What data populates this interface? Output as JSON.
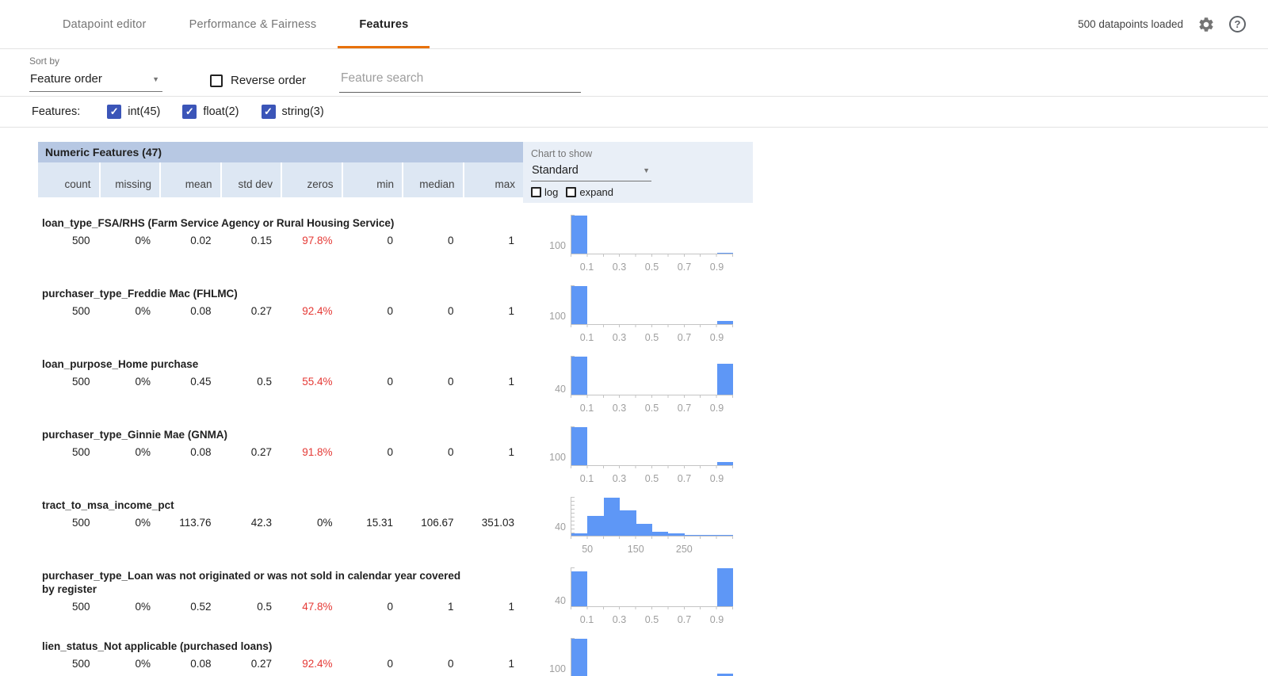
{
  "header": {
    "tabs": [
      {
        "label": "Datapoint editor",
        "active": false
      },
      {
        "label": "Performance & Fairness",
        "active": false
      },
      {
        "label": "Features",
        "active": true
      }
    ],
    "status": "500 datapoints loaded",
    "icons": {
      "settings": "gear-icon",
      "help": "help-icon"
    }
  },
  "toolbar": {
    "sort_by_label": "Sort by",
    "sort_by_value": "Feature order",
    "reverse_order_label": "Reverse order",
    "search_placeholder": "Feature search"
  },
  "filters": {
    "label": "Features:",
    "items": [
      {
        "label": "int(45)",
        "checked": true
      },
      {
        "label": "float(2)",
        "checked": true
      },
      {
        "label": "string(3)",
        "checked": true
      }
    ]
  },
  "table": {
    "title": "Numeric Features (47)",
    "columns": [
      "count",
      "missing",
      "mean",
      "std dev",
      "zeros",
      "min",
      "median",
      "max"
    ],
    "chart_controls": {
      "label": "Chart to show",
      "selected": "Standard",
      "checkboxes": [
        {
          "label": "log",
          "checked": false
        },
        {
          "label": "expand",
          "checked": false
        }
      ]
    }
  },
  "colors": {
    "accent_orange": "#e8710a",
    "bar_blue": "#5e97f6",
    "checkbox_blue": "#3b55b8",
    "alert_red": "#e53935",
    "header_blue": "#b7c8e3",
    "subheader_blue": "#dde7f3",
    "panel_blue": "#e9eff7"
  },
  "features": [
    {
      "name": "loan_type_FSA/RHS (Farm Service Agency or Rural Housing Service)",
      "stats": {
        "count": "500",
        "missing": "0%",
        "mean": "0.02",
        "std dev": "0.15",
        "zeros": "97.8%",
        "min": "0",
        "median": "0",
        "max": "1"
      },
      "zeros_red": true,
      "histogram": {
        "type": "bar",
        "y_label": "100",
        "axis_min": 0,
        "axis_max": 1,
        "ticks": [
          0.1,
          0.3,
          0.5,
          0.7,
          0.9
        ],
        "bins": [
          489,
          0,
          0,
          0,
          0,
          0,
          0,
          0,
          0,
          11
        ]
      }
    },
    {
      "name": "purchaser_type_Freddie Mac (FHLMC)",
      "stats": {
        "count": "500",
        "missing": "0%",
        "mean": "0.08",
        "std dev": "0.27",
        "zeros": "92.4%",
        "min": "0",
        "median": "0",
        "max": "1"
      },
      "zeros_red": true,
      "histogram": {
        "type": "bar",
        "y_label": "100",
        "axis_min": 0,
        "axis_max": 1,
        "ticks": [
          0.1,
          0.3,
          0.5,
          0.7,
          0.9
        ],
        "bins": [
          462,
          0,
          0,
          0,
          0,
          0,
          0,
          0,
          0,
          38
        ]
      }
    },
    {
      "name": "loan_purpose_Home purchase",
      "stats": {
        "count": "500",
        "missing": "0%",
        "mean": "0.45",
        "std dev": "0.5",
        "zeros": "55.4%",
        "min": "0",
        "median": "0",
        "max": "1"
      },
      "zeros_red": true,
      "histogram": {
        "type": "bar",
        "y_label": "40",
        "axis_min": 0,
        "axis_max": 1,
        "ticks": [
          0.1,
          0.3,
          0.5,
          0.7,
          0.9
        ],
        "bins": [
          277,
          0,
          0,
          0,
          0,
          0,
          0,
          0,
          0,
          223
        ]
      }
    },
    {
      "name": "purchaser_type_Ginnie Mae (GNMA)",
      "stats": {
        "count": "500",
        "missing": "0%",
        "mean": "0.08",
        "std dev": "0.27",
        "zeros": "91.8%",
        "min": "0",
        "median": "0",
        "max": "1"
      },
      "zeros_red": true,
      "histogram": {
        "type": "bar",
        "y_label": "100",
        "axis_min": 0,
        "axis_max": 1,
        "ticks": [
          0.1,
          0.3,
          0.5,
          0.7,
          0.9
        ],
        "bins": [
          459,
          0,
          0,
          0,
          0,
          0,
          0,
          0,
          0,
          41
        ]
      }
    },
    {
      "name": "tract_to_msa_income_pct",
      "stats": {
        "count": "500",
        "missing": "0%",
        "mean": "113.76",
        "std dev": "42.3",
        "zeros": "0%",
        "min": "15.31",
        "median": "106.67",
        "max": "351.03"
      },
      "zeros_red": false,
      "histogram": {
        "type": "bar",
        "y_label": "40",
        "axis_min": 15.31,
        "axis_max": 351.03,
        "ticks": [
          50,
          150,
          250
        ],
        "bins": [
          10,
          95,
          180,
          120,
          55,
          20,
          10,
          5,
          3,
          2
        ]
      }
    },
    {
      "name": "purchaser_type_Loan was not originated or was not sold in calendar year covered by register",
      "stats": {
        "count": "500",
        "missing": "0%",
        "mean": "0.52",
        "std dev": "0.5",
        "zeros": "47.8%",
        "min": "0",
        "median": "1",
        "max": "1"
      },
      "zeros_red": true,
      "histogram": {
        "type": "bar",
        "y_label": "40",
        "axis_min": 0,
        "axis_max": 1,
        "ticks": [
          0.1,
          0.3,
          0.5,
          0.7,
          0.9
        ],
        "bins": [
          239,
          0,
          0,
          0,
          0,
          0,
          0,
          0,
          0,
          261
        ]
      }
    },
    {
      "name": "lien_status_Not applicable (purchased loans)",
      "stats": {
        "count": "500",
        "missing": "0%",
        "mean": "0.08",
        "std dev": "0.27",
        "zeros": "92.4%",
        "min": "0",
        "median": "0",
        "max": "1"
      },
      "zeros_red": true,
      "histogram": {
        "type": "bar",
        "y_label": "100",
        "axis_min": 0,
        "axis_max": 1,
        "ticks": [
          0.1,
          0.3,
          0.5,
          0.7,
          0.9
        ],
        "bins": [
          462,
          0,
          0,
          0,
          0,
          0,
          0,
          0,
          0,
          38
        ]
      }
    }
  ]
}
